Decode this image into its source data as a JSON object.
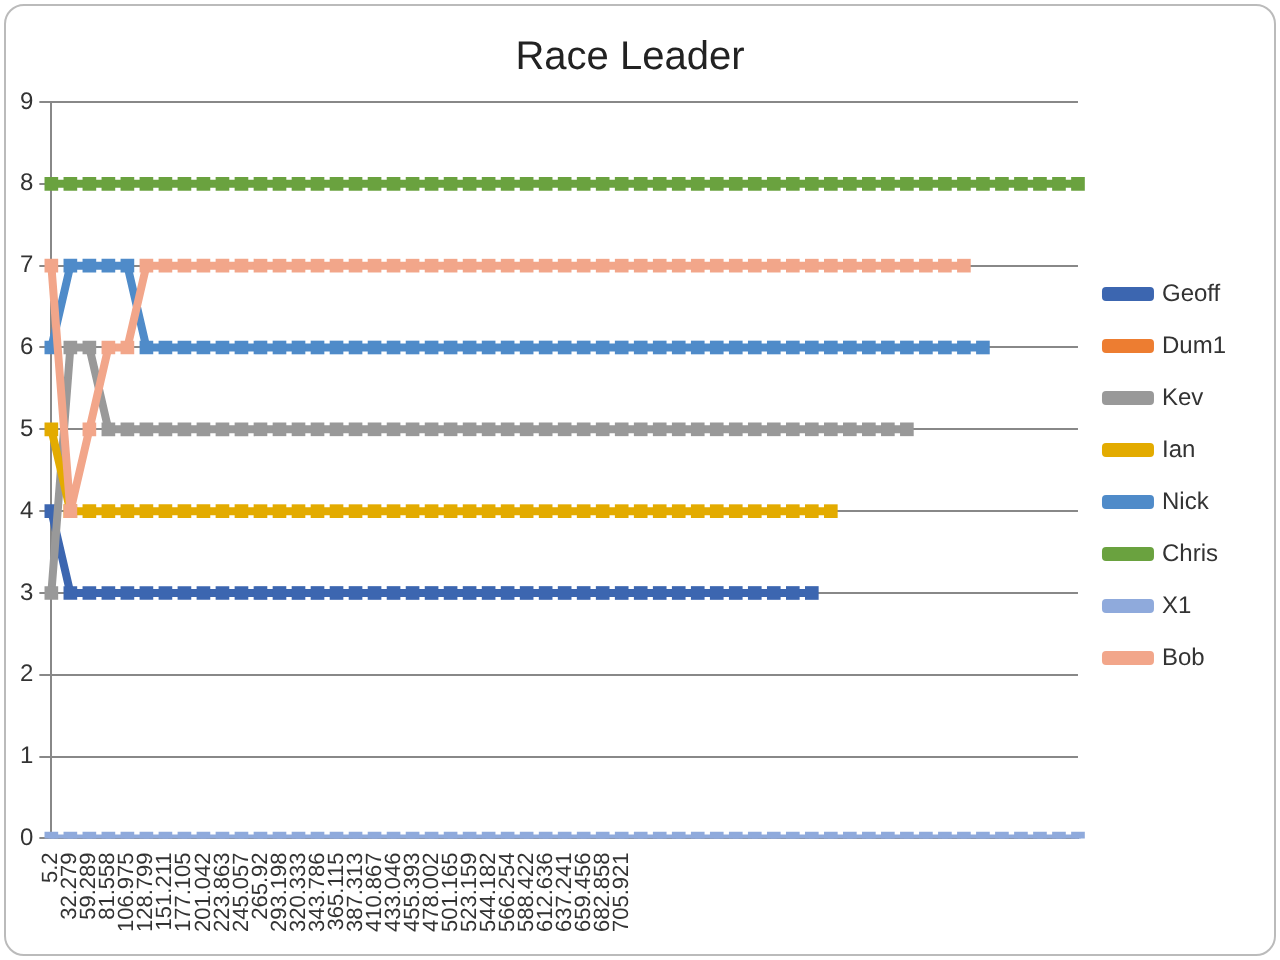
{
  "chart_data": {
    "type": "line",
    "title": "Race Leader",
    "categories": [
      "5.2",
      "32.279",
      "59.289",
      "81.558",
      "106.975",
      "128.799",
      "151.211",
      "177.105",
      "201.042",
      "223.863",
      "245.057",
      "265.92",
      "293.198",
      "320.333",
      "343.786",
      "365.115",
      "387.313",
      "410.867",
      "433.046",
      "455.393",
      "478.002",
      "501.165",
      "523.159",
      "544.182",
      "566.254",
      "588.422",
      "612.636",
      "637.241",
      "659.456",
      "682.858",
      "705.921",
      null,
      null,
      null,
      null,
      null,
      null,
      null,
      null,
      null,
      null,
      null,
      null,
      null,
      null,
      null,
      null,
      null,
      null,
      null,
      null,
      null,
      null,
      null,
      null
    ],
    "series": [
      {
        "name": "Geoff",
        "color": "#3c66b0",
        "values": [
          4,
          3,
          3,
          3,
          3,
          3,
          3,
          3,
          3,
          3,
          3,
          3,
          3,
          3,
          3,
          3,
          3,
          3,
          3,
          3,
          3,
          3,
          3,
          3,
          3,
          3,
          3,
          3,
          3,
          3,
          3,
          3,
          3,
          3,
          3,
          3,
          3,
          3,
          3,
          3,
          3,
          null,
          null,
          null,
          null,
          null,
          null,
          null,
          null,
          null,
          null,
          null,
          null,
          null,
          null
        ]
      },
      {
        "name": "Dum1",
        "color": "#ed7d31",
        "values": [
          null,
          null,
          null,
          null,
          null,
          null,
          null,
          null,
          null,
          null,
          null,
          null,
          null,
          null,
          null,
          null,
          null,
          null,
          null,
          null,
          null,
          null,
          null,
          null,
          null,
          null,
          null,
          null,
          null,
          null,
          null,
          null,
          null,
          null,
          null,
          null,
          null,
          null,
          null,
          null,
          null,
          null,
          null,
          null,
          null,
          null,
          null,
          null,
          null,
          null,
          null,
          null,
          null,
          null,
          null
        ]
      },
      {
        "name": "Kev",
        "color": "#999999",
        "values": [
          3,
          6,
          6,
          5,
          5,
          5,
          5,
          5,
          5,
          5,
          5,
          5,
          5,
          5,
          5,
          5,
          5,
          5,
          5,
          5,
          5,
          5,
          5,
          5,
          5,
          5,
          5,
          5,
          5,
          5,
          5,
          5,
          5,
          5,
          5,
          5,
          5,
          5,
          5,
          5,
          5,
          5,
          5,
          5,
          5,
          5,
          null,
          null,
          null,
          null,
          null,
          null,
          null,
          null,
          null
        ]
      },
      {
        "name": "Ian",
        "color": "#e3ab00",
        "values": [
          5,
          4,
          4,
          4,
          4,
          4,
          4,
          4,
          4,
          4,
          4,
          4,
          4,
          4,
          4,
          4,
          4,
          4,
          4,
          4,
          4,
          4,
          4,
          4,
          4,
          4,
          4,
          4,
          4,
          4,
          4,
          4,
          4,
          4,
          4,
          4,
          4,
          4,
          4,
          4,
          4,
          4,
          null,
          null,
          null,
          null,
          null,
          null,
          null,
          null,
          null,
          null,
          null,
          null,
          null
        ]
      },
      {
        "name": "Nick",
        "color": "#4f8bc9",
        "values": [
          6,
          7,
          7,
          7,
          7,
          6,
          6,
          6,
          6,
          6,
          6,
          6,
          6,
          6,
          6,
          6,
          6,
          6,
          6,
          6,
          6,
          6,
          6,
          6,
          6,
          6,
          6,
          6,
          6,
          6,
          6,
          6,
          6,
          6,
          6,
          6,
          6,
          6,
          6,
          6,
          6,
          6,
          6,
          6,
          6,
          6,
          6,
          6,
          6,
          6,
          null,
          null,
          null,
          null,
          null
        ]
      },
      {
        "name": "Chris",
        "color": "#6aa23f",
        "values": [
          8,
          8,
          8,
          8,
          8,
          8,
          8,
          8,
          8,
          8,
          8,
          8,
          8,
          8,
          8,
          8,
          8,
          8,
          8,
          8,
          8,
          8,
          8,
          8,
          8,
          8,
          8,
          8,
          8,
          8,
          8,
          8,
          8,
          8,
          8,
          8,
          8,
          8,
          8,
          8,
          8,
          8,
          8,
          8,
          8,
          8,
          8,
          8,
          8,
          8,
          8,
          8,
          8,
          8,
          8
        ]
      },
      {
        "name": "X1",
        "color": "#8faadc",
        "values": [
          0,
          0,
          0,
          0,
          0,
          0,
          0,
          0,
          0,
          0,
          0,
          0,
          0,
          0,
          0,
          0,
          0,
          0,
          0,
          0,
          0,
          0,
          0,
          0,
          0,
          0,
          0,
          0,
          0,
          0,
          0,
          0,
          0,
          0,
          0,
          0,
          0,
          0,
          0,
          0,
          0,
          0,
          0,
          0,
          0,
          0,
          0,
          0,
          0,
          0,
          0,
          0,
          0,
          0,
          0
        ]
      },
      {
        "name": "Bob",
        "color": "#f2a68a",
        "values": [
          7,
          4,
          5,
          6,
          6,
          7,
          7,
          7,
          7,
          7,
          7,
          7,
          7,
          7,
          7,
          7,
          7,
          7,
          7,
          7,
          7,
          7,
          7,
          7,
          7,
          7,
          7,
          7,
          7,
          7,
          7,
          7,
          7,
          7,
          7,
          7,
          7,
          7,
          7,
          7,
          7,
          7,
          7,
          7,
          7,
          7,
          7,
          7,
          7,
          null,
          null,
          null,
          null,
          null,
          null
        ]
      }
    ],
    "ylim": [
      0,
      9
    ],
    "yticks": [
      0,
      1,
      2,
      3,
      4,
      5,
      6,
      7,
      8,
      9
    ],
    "grid": "y",
    "legend": "right",
    "marker": "square",
    "line_style": "solid"
  }
}
